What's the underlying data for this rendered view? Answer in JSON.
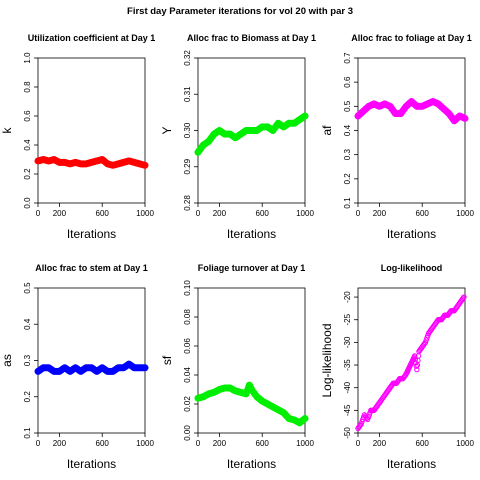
{
  "page_title": "First day Parameter iterations for vol 20 with par 3",
  "chart_data": [
    {
      "type": "scatter",
      "title": "Utilization coefficient at Day 1",
      "xlabel": "Iterations",
      "ylabel": "k",
      "xlim": [
        0,
        1000
      ],
      "ylim": [
        0,
        1
      ],
      "xticks": [
        0,
        200,
        600,
        1000
      ],
      "yticks": [
        0.0,
        0.2,
        0.4,
        0.6,
        0.8,
        1.0
      ],
      "color": "#ff0000",
      "marker": "filled",
      "x": [
        0,
        50,
        100,
        150,
        200,
        250,
        300,
        350,
        400,
        450,
        500,
        550,
        600,
        650,
        700,
        750,
        800,
        850,
        900,
        950,
        1000
      ],
      "y": [
        0.29,
        0.3,
        0.29,
        0.3,
        0.28,
        0.28,
        0.27,
        0.28,
        0.27,
        0.27,
        0.28,
        0.29,
        0.3,
        0.27,
        0.26,
        0.27,
        0.28,
        0.29,
        0.28,
        0.27,
        0.26
      ]
    },
    {
      "type": "scatter",
      "title": "Alloc frac to Biomass at Day 1",
      "xlabel": "Iterations",
      "ylabel": "Y",
      "xlim": [
        0,
        1000
      ],
      "ylim": [
        0.28,
        0.32
      ],
      "xticks": [
        0,
        200,
        600,
        1000
      ],
      "yticks": [
        0.28,
        0.29,
        0.3,
        0.31,
        0.32
      ],
      "color": "#00ee00",
      "marker": "filled",
      "x": [
        0,
        50,
        100,
        150,
        200,
        250,
        300,
        350,
        400,
        450,
        500,
        550,
        600,
        650,
        700,
        750,
        800,
        850,
        900,
        950,
        1000
      ],
      "y": [
        0.294,
        0.296,
        0.297,
        0.299,
        0.3,
        0.299,
        0.299,
        0.298,
        0.299,
        0.3,
        0.3,
        0.3,
        0.301,
        0.301,
        0.3,
        0.302,
        0.301,
        0.302,
        0.302,
        0.303,
        0.304
      ]
    },
    {
      "type": "scatter",
      "title": "Alloc frac to foliage at Day 1",
      "xlabel": "Iterations",
      "ylabel": "af",
      "xlim": [
        0,
        1000
      ],
      "ylim": [
        0.1,
        0.7
      ],
      "xticks": [
        0,
        200,
        600,
        1000
      ],
      "yticks": [
        0.1,
        0.2,
        0.3,
        0.4,
        0.5,
        0.6,
        0.7
      ],
      "color": "#ff00ff",
      "marker": "filled",
      "x": [
        0,
        50,
        100,
        150,
        200,
        250,
        300,
        350,
        400,
        450,
        500,
        550,
        600,
        650,
        700,
        750,
        800,
        850,
        900,
        950,
        1000
      ],
      "y": [
        0.46,
        0.48,
        0.5,
        0.51,
        0.5,
        0.51,
        0.5,
        0.47,
        0.47,
        0.5,
        0.52,
        0.5,
        0.5,
        0.51,
        0.52,
        0.51,
        0.49,
        0.47,
        0.44,
        0.46,
        0.45
      ]
    },
    {
      "type": "scatter",
      "title": "Alloc frac to stem at Day 1",
      "xlabel": "Iterations",
      "ylabel": "as",
      "xlim": [
        0,
        1000
      ],
      "ylim": [
        0.1,
        0.5
      ],
      "xticks": [
        0,
        200,
        600,
        1000
      ],
      "yticks": [
        0.1,
        0.2,
        0.3,
        0.4,
        0.5
      ],
      "color": "#0000ff",
      "marker": "filled",
      "x": [
        0,
        50,
        100,
        150,
        200,
        250,
        300,
        350,
        400,
        450,
        500,
        550,
        600,
        650,
        700,
        750,
        800,
        850,
        900,
        950,
        1000
      ],
      "y": [
        0.27,
        0.28,
        0.28,
        0.27,
        0.27,
        0.28,
        0.27,
        0.28,
        0.27,
        0.28,
        0.28,
        0.27,
        0.28,
        0.27,
        0.27,
        0.28,
        0.28,
        0.29,
        0.28,
        0.28,
        0.28
      ]
    },
    {
      "type": "scatter",
      "title": "Foliage turnover at Day 1",
      "xlabel": "Iterations",
      "ylabel": "sf",
      "xlim": [
        0,
        1000
      ],
      "ylim": [
        0,
        0.1
      ],
      "xticks": [
        0,
        200,
        600,
        1000
      ],
      "yticks": [
        0.0,
        0.02,
        0.04,
        0.06,
        0.08,
        0.1
      ],
      "color": "#00ee00",
      "marker": "filled",
      "x": [
        0,
        50,
        100,
        150,
        200,
        250,
        300,
        350,
        400,
        450,
        480,
        500,
        550,
        600,
        650,
        700,
        750,
        800,
        850,
        900,
        950,
        1000
      ],
      "y": [
        0.024,
        0.025,
        0.027,
        0.028,
        0.03,
        0.031,
        0.031,
        0.029,
        0.028,
        0.027,
        0.033,
        0.03,
        0.025,
        0.022,
        0.02,
        0.018,
        0.016,
        0.014,
        0.01,
        0.009,
        0.007,
        0.01
      ]
    },
    {
      "type": "scatter",
      "title": "Log-likelihood",
      "xlabel": "Iterations",
      "ylabel": "Log-likelihood",
      "xlim": [
        0,
        1000
      ],
      "ylim": [
        -50,
        -18
      ],
      "xticks": [
        0,
        200,
        600,
        1000
      ],
      "yticks": [
        -50,
        -45,
        -40,
        -35,
        -30,
        -25,
        -20
      ],
      "color": "#ff00ff",
      "marker": "open",
      "x": [
        0,
        30,
        60,
        90,
        120,
        150,
        180,
        210,
        240,
        270,
        300,
        330,
        360,
        390,
        420,
        450,
        470,
        490,
        510,
        530,
        550,
        570,
        600,
        630,
        660,
        690,
        720,
        750,
        780,
        810,
        840,
        870,
        900,
        930,
        960,
        990
      ],
      "y": [
        -49,
        -48,
        -46,
        -47,
        -45,
        -45,
        -44,
        -43,
        -42,
        -41,
        -40,
        -39,
        -39,
        -38,
        -38,
        -37,
        -36,
        -35,
        -34,
        -33,
        -36,
        -32,
        -31,
        -30,
        -28,
        -27,
        -26,
        -25,
        -25,
        -24,
        -24,
        -23,
        -23,
        -22,
        -21,
        -20
      ]
    }
  ]
}
